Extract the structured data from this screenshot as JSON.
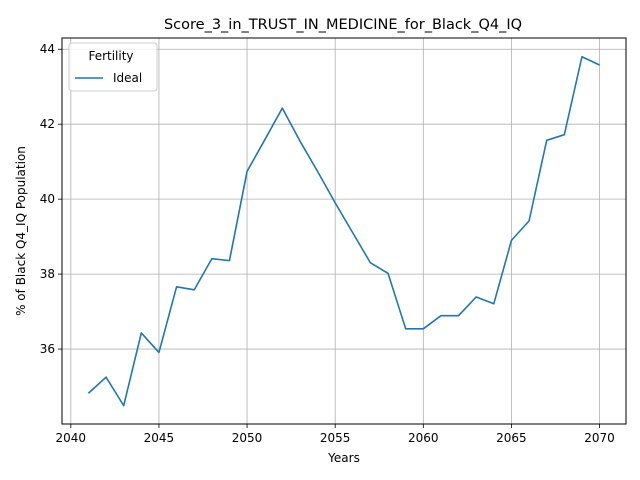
{
  "chart_data": {
    "type": "line",
    "title": "Score_3_in_TRUST_IN_MEDICINE_for_Black_Q4_IQ",
    "xlabel": "Years",
    "ylabel": "% of Black Q4_IQ Population",
    "xlim": [
      2039.5,
      2071.5
    ],
    "ylim": [
      34.0,
      44.3
    ],
    "xticks": [
      2040,
      2045,
      2050,
      2055,
      2060,
      2065,
      2070
    ],
    "yticks": [
      36,
      38,
      40,
      42,
      44
    ],
    "grid": true,
    "legend": {
      "title": "Fertility",
      "placement": "top-left"
    },
    "series": [
      {
        "name": "Ideal",
        "color": "#1f77b4",
        "x": [
          2041,
          2042,
          2043,
          2044,
          2045,
          2046,
          2047,
          2048,
          2049,
          2050,
          2051,
          2052,
          2053,
          2054,
          2055,
          2056,
          2057,
          2058,
          2059,
          2060,
          2061,
          2062,
          2063,
          2064,
          2065,
          2066,
          2067,
          2068,
          2069,
          2070
        ],
        "y": [
          34.82,
          35.25,
          34.49,
          36.43,
          35.91,
          37.66,
          37.58,
          38.41,
          38.36,
          40.74,
          41.58,
          42.43,
          41.55,
          40.74,
          39.9,
          39.1,
          38.3,
          38.02,
          36.54,
          36.54,
          36.89,
          36.89,
          37.39,
          37.21,
          38.9,
          39.42,
          41.57,
          41.72,
          43.8,
          43.58
        ]
      }
    ]
  }
}
